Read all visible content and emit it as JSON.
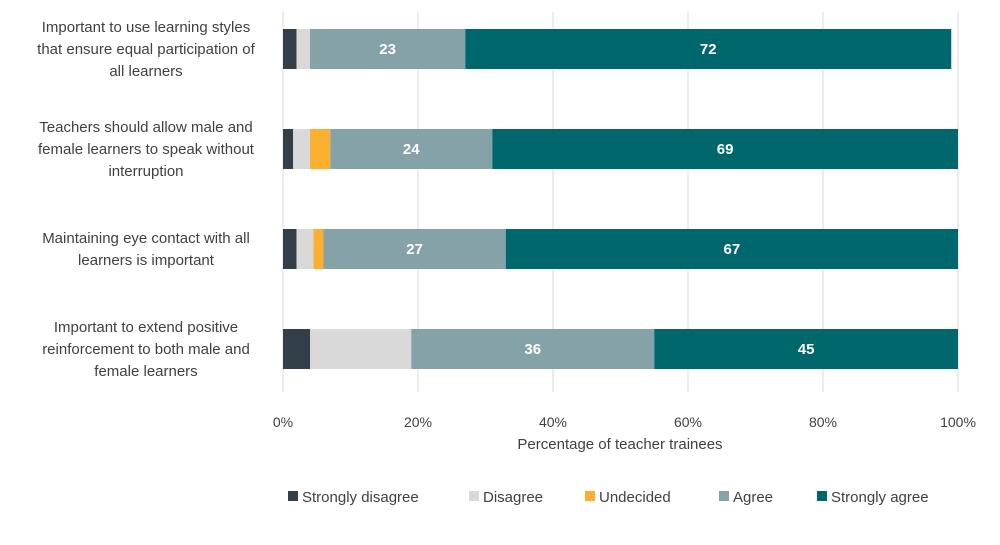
{
  "chart_data": {
    "type": "bar",
    "orientation": "horizontal",
    "stacked": true,
    "title": "",
    "xlabel": "Percentage of teacher trainees",
    "ylabel": "",
    "xlim": [
      0,
      100
    ],
    "x_ticks": [
      "0%",
      "20%",
      "40%",
      "60%",
      "80%",
      "100%"
    ],
    "grid": true,
    "legend_position": "bottom",
    "categories": [
      "Important to use learning styles that ensure equal participation of all learners",
      "Teachers should allow male and female learners to speak without interruption",
      "Maintaining eye contact with all learners is important",
      "Important to extend positive reinforcement to both male and female learners"
    ],
    "category_lines": [
      [
        "Important to use learning styles",
        "that ensure equal participation of",
        "all learners"
      ],
      [
        "Teachers should allow male and",
        "female learners to speak without",
        "interruption"
      ],
      [
        "Maintaining eye contact with all",
        "learners is important"
      ],
      [
        "Important to extend positive",
        "reinforcement to both male and",
        "female learners"
      ]
    ],
    "series": [
      {
        "name": "Strongly disagree",
        "color": "#333f48",
        "values": [
          2,
          1.5,
          2,
          4
        ],
        "labels": [
          "",
          "",
          "",
          ""
        ]
      },
      {
        "name": "Disagree",
        "color": "#d9d9d9",
        "values": [
          2,
          2.5,
          2.5,
          15
        ],
        "labels": [
          "",
          "",
          "",
          ""
        ]
      },
      {
        "name": "Undecided",
        "color": "#fbb12f",
        "values": [
          0,
          3,
          1.5,
          0
        ],
        "labels": [
          "",
          "",
          "",
          ""
        ]
      },
      {
        "name": "Agree",
        "color": "#84a2a8",
        "values": [
          23,
          24,
          27,
          36
        ],
        "labels": [
          "23",
          "24",
          "27",
          "36"
        ]
      },
      {
        "name": "Strongly agree",
        "color": "#00686c",
        "values": [
          72,
          69,
          67,
          45
        ],
        "labels": [
          "72",
          "69",
          "67",
          "45"
        ]
      }
    ]
  }
}
